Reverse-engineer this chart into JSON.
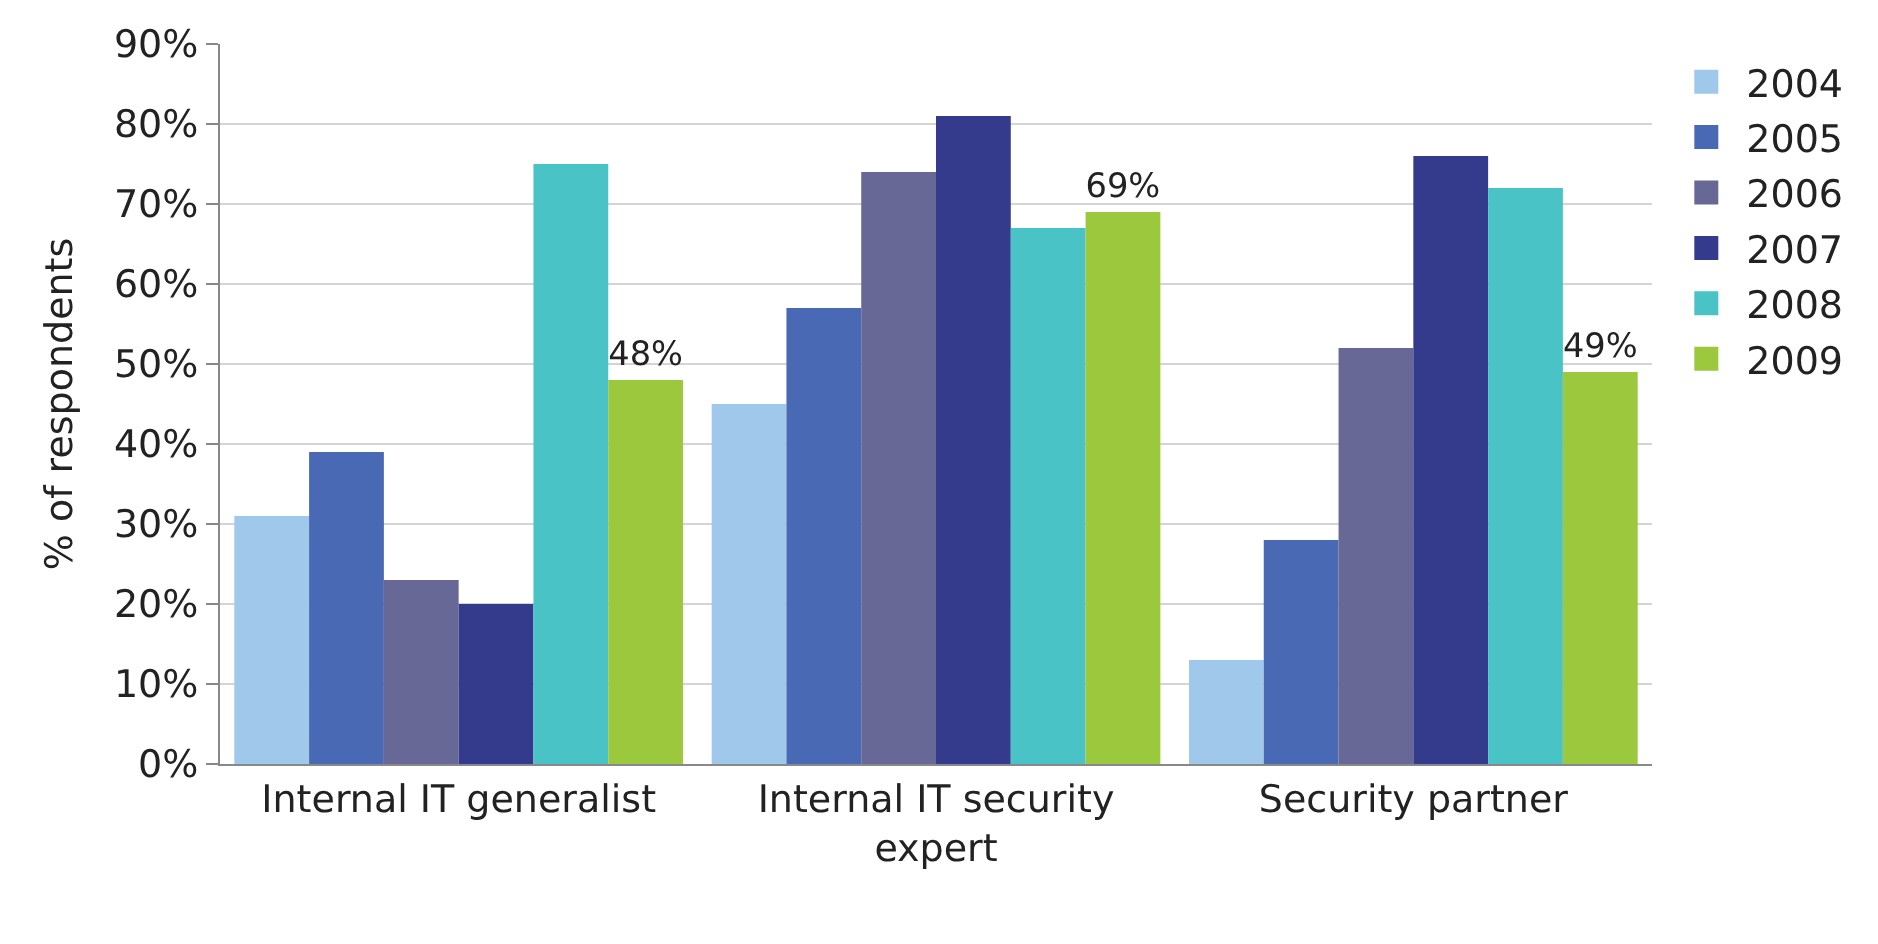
{
  "chart_data": {
    "type": "bar",
    "ylabel": "% of respondents",
    "categories": [
      "Internal IT generalist",
      "Internal IT security expert",
      "Security partner"
    ],
    "series": [
      {
        "name": "2004",
        "color": "#9fc8ea",
        "values": [
          31,
          45,
          13
        ]
      },
      {
        "name": "2005",
        "color": "#4a69b4",
        "values": [
          39,
          57,
          28
        ]
      },
      {
        "name": "2006",
        "color": "#686896",
        "values": [
          23,
          74,
          52
        ]
      },
      {
        "name": "2007",
        "color": "#343a8c",
        "values": [
          20,
          81,
          76
        ]
      },
      {
        "name": "2008",
        "color": "#4ac3c6",
        "values": [
          75,
          67,
          72
        ]
      },
      {
        "name": "2009",
        "color": "#9bc83c",
        "values": [
          48,
          69,
          49
        ],
        "value_labels": [
          "48%",
          "69%",
          "49%"
        ]
      }
    ],
    "ylim": [
      0,
      90
    ],
    "yticks": [
      {
        "value": 0,
        "label": "0%"
      },
      {
        "value": 10,
        "label": "10%"
      },
      {
        "value": 20,
        "label": "20%"
      },
      {
        "value": 30,
        "label": "30%"
      },
      {
        "value": 40,
        "label": "40%"
      },
      {
        "value": 50,
        "label": "50%"
      },
      {
        "value": 60,
        "label": "60%"
      },
      {
        "value": 70,
        "label": "70%"
      },
      {
        "value": 80,
        "label": "80%"
      },
      {
        "value": 90,
        "label": "90%"
      }
    ],
    "grid": "y",
    "legend": "right"
  }
}
